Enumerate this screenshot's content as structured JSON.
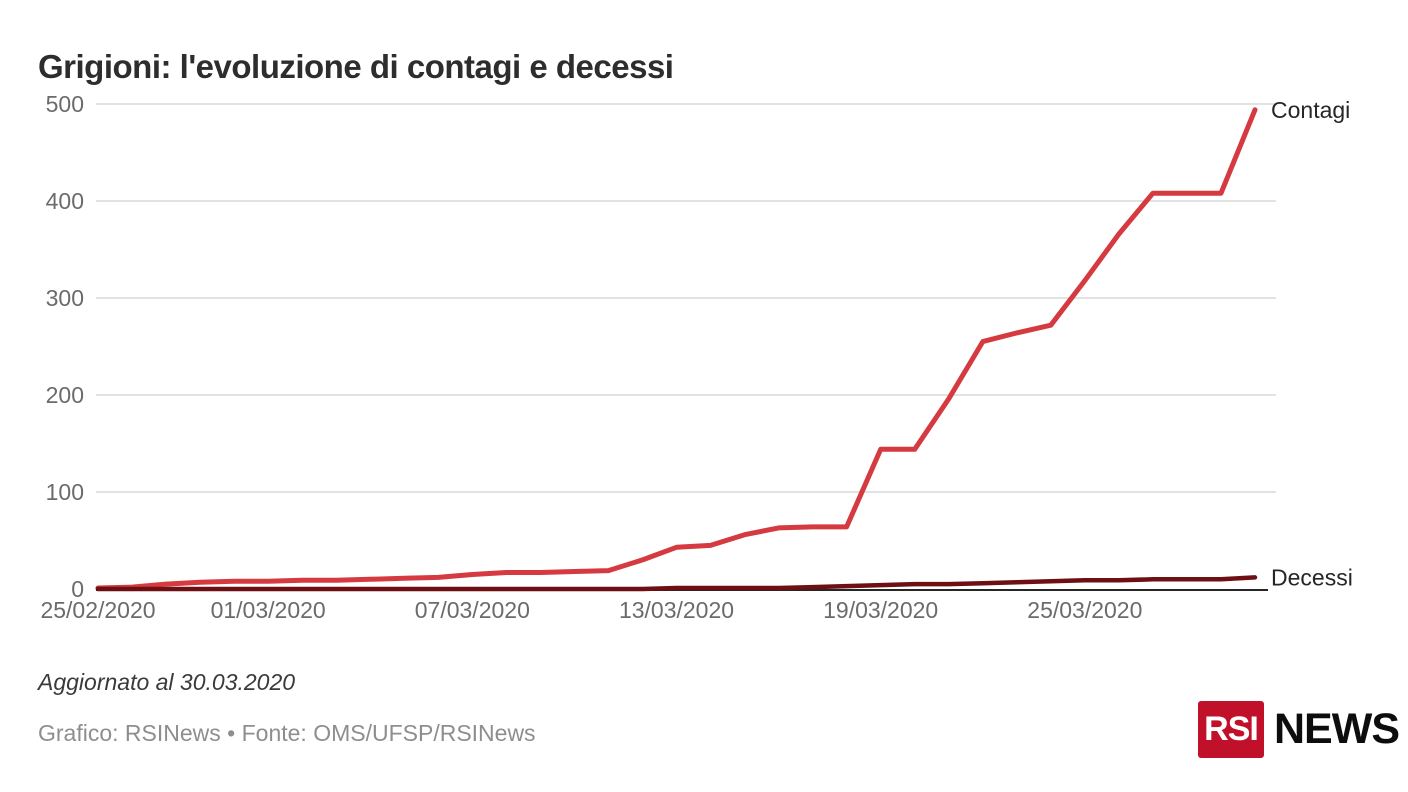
{
  "header": {
    "title": "Grigioni: l'evoluzione di contagi e decessi"
  },
  "footer": {
    "updated_note": "Aggiornato al 30.03.2020",
    "credit": "Grafico: RSINews • Fonte: OMS/UFSP/RSINews",
    "logo": {
      "box_text": "RSI",
      "suffix_text": "NEWS",
      "box_color": "#c11029"
    }
  },
  "chart_data": {
    "type": "line",
    "title": "Grigioni: l'evoluzione di contagi e decessi",
    "x": [
      "25/02/2020",
      "26/02/2020",
      "27/02/2020",
      "28/02/2020",
      "29/02/2020",
      "01/03/2020",
      "02/03/2020",
      "03/03/2020",
      "04/03/2020",
      "05/03/2020",
      "06/03/2020",
      "07/03/2020",
      "08/03/2020",
      "09/03/2020",
      "10/03/2020",
      "11/03/2020",
      "12/03/2020",
      "13/03/2020",
      "14/03/2020",
      "15/03/2020",
      "16/03/2020",
      "17/03/2020",
      "18/03/2020",
      "19/03/2020",
      "20/03/2020",
      "21/03/2020",
      "22/03/2020",
      "23/03/2020",
      "24/03/2020",
      "25/03/2020",
      "26/03/2020",
      "27/03/2020",
      "28/03/2020",
      "29/03/2020",
      "30/03/2020"
    ],
    "series": [
      {
        "name": "Contagi",
        "color": "#d53a40",
        "stroke_width": 5,
        "values": [
          1,
          2,
          5,
          7,
          8,
          8,
          9,
          9,
          10,
          11,
          12,
          15,
          17,
          17,
          18,
          19,
          30,
          43,
          45,
          56,
          63,
          64,
          64,
          144,
          144,
          196,
          255,
          264,
          272,
          318,
          366,
          408,
          408,
          408,
          494
        ]
      },
      {
        "name": "Decessi",
        "color": "#6e1013",
        "stroke_width": 4.5,
        "values": [
          0,
          0,
          0,
          0,
          0,
          0,
          0,
          0,
          0,
          0,
          0,
          0,
          0,
          0,
          0,
          0,
          0,
          1,
          1,
          1,
          1,
          2,
          3,
          4,
          5,
          5,
          6,
          7,
          8,
          9,
          9,
          10,
          10,
          10,
          12
        ]
      }
    ],
    "xticks": [
      {
        "label": "25/02/2020",
        "day": 0
      },
      {
        "label": "01/03/2020",
        "day": 5
      },
      {
        "label": "07/03/2020",
        "day": 11
      },
      {
        "label": "13/03/2020",
        "day": 17
      },
      {
        "label": "19/03/2020",
        "day": 23
      },
      {
        "label": "25/03/2020",
        "day": 29
      }
    ],
    "yticks": [
      0,
      100,
      200,
      300,
      400,
      500
    ],
    "ylim": [
      0,
      500
    ],
    "grid": "horizontal",
    "legend_position": "line-end-labels",
    "grid_color": "#d9d9d9",
    "axis_color": "#262626",
    "tick_label_color": "#6b6b6b",
    "end_label_color": "#262626"
  }
}
